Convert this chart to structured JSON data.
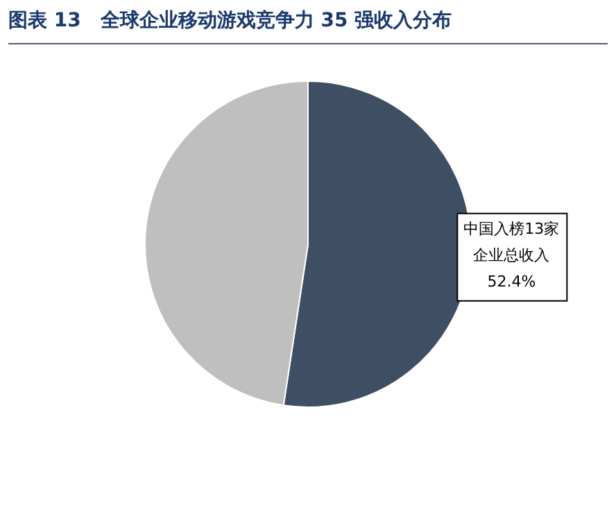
{
  "chart_data": {
    "type": "pie",
    "title": "图表 13　全球企业移动游戏竞争力 35 强收入分布",
    "categories": [
      "中国入榜13家企业总收入",
      null
    ],
    "values": [
      52.4,
      47.6
    ],
    "colors": [
      "#3e4f64",
      "#bfbfbf"
    ],
    "value_labels": [
      "52.4%",
      null
    ],
    "legend": false
  }
}
